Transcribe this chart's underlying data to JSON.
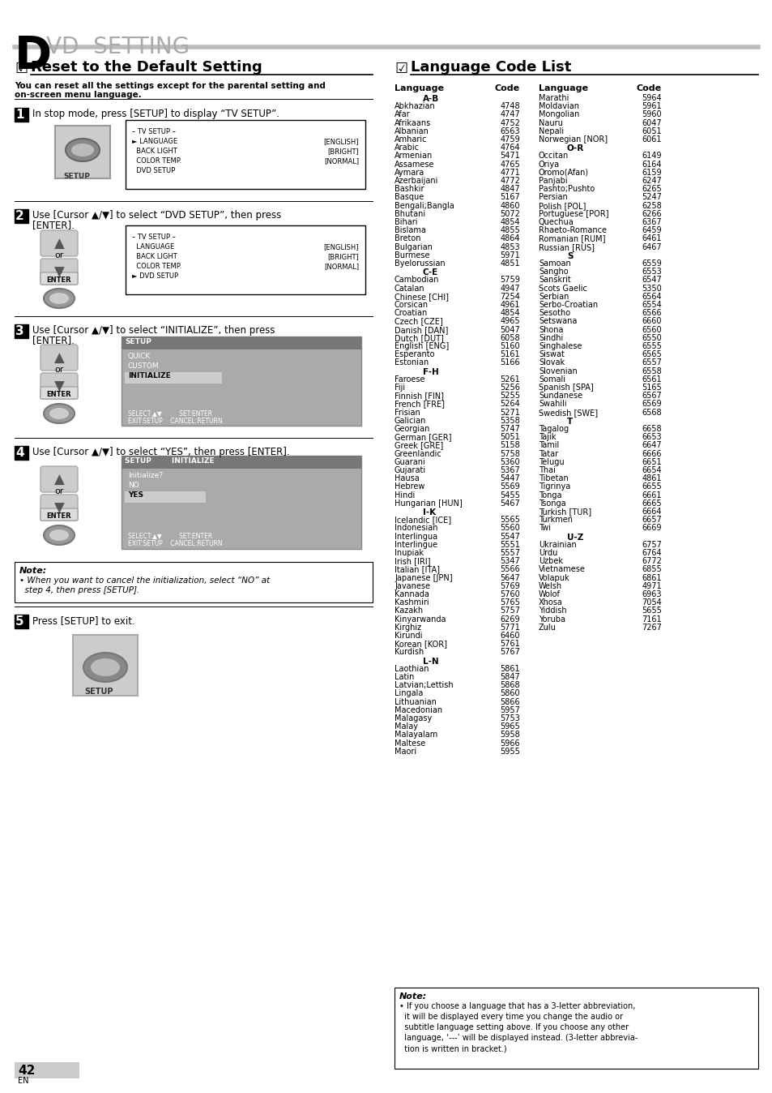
{
  "bg_color": "#ffffff",
  "lang_left": [
    [
      "A-B",
      null
    ],
    [
      "Abkhazian",
      "4748"
    ],
    [
      "Afar",
      "4747"
    ],
    [
      "Afrikaans",
      "4752"
    ],
    [
      "Albanian",
      "6563"
    ],
    [
      "Amharic",
      "4759"
    ],
    [
      "Arabic",
      "4764"
    ],
    [
      "Armenian",
      "5471"
    ],
    [
      "Assamese",
      "4765"
    ],
    [
      "Aymara",
      "4771"
    ],
    [
      "Azerbaijani",
      "4772"
    ],
    [
      "Bashkir",
      "4847"
    ],
    [
      "Basque",
      "5167"
    ],
    [
      "Bengali;Bangla",
      "4860"
    ],
    [
      "Bhutani",
      "5072"
    ],
    [
      "Bihari",
      "4854"
    ],
    [
      "Bislama",
      "4855"
    ],
    [
      "Breton",
      "4864"
    ],
    [
      "Bulgarian",
      "4853"
    ],
    [
      "Burmese",
      "5971"
    ],
    [
      "Byelorussian",
      "4851"
    ],
    [
      "C-E",
      null
    ],
    [
      "Cambodian",
      "5759"
    ],
    [
      "Catalan",
      "4947"
    ],
    [
      "Chinese [CHI]",
      "7254"
    ],
    [
      "Corsican",
      "4961"
    ],
    [
      "Croatian",
      "4854"
    ],
    [
      "Czech [CZE]",
      "4965"
    ],
    [
      "Danish [DAN]",
      "5047"
    ],
    [
      "Dutch [DUT]",
      "6058"
    ],
    [
      "English [ENG]",
      "5160"
    ],
    [
      "Esperanto",
      "5161"
    ],
    [
      "Estonian",
      "5166"
    ],
    [
      "F-H",
      null
    ],
    [
      "Faroese",
      "5261"
    ],
    [
      "Fiji",
      "5256"
    ],
    [
      "Finnish [FIN]",
      "5255"
    ],
    [
      "French [FRE]",
      "5264"
    ],
    [
      "Frisian",
      "5271"
    ],
    [
      "Galician",
      "5358"
    ],
    [
      "Georgian",
      "5747"
    ],
    [
      "German [GER]",
      "5051"
    ],
    [
      "Greek [GRE]",
      "5158"
    ],
    [
      "Greenlandic",
      "5758"
    ],
    [
      "Guarani",
      "5360"
    ],
    [
      "Gujarati",
      "5367"
    ],
    [
      "Hausa",
      "5447"
    ],
    [
      "Hebrew",
      "5569"
    ],
    [
      "Hindi",
      "5455"
    ],
    [
      "Hungarian [HUN]",
      "5467"
    ],
    [
      "I-K",
      null
    ],
    [
      "Icelandic [ICE]",
      "5565"
    ],
    [
      "Indonesian",
      "5560"
    ],
    [
      "Interlingua",
      "5547"
    ],
    [
      "Interlingue",
      "5551"
    ],
    [
      "Inupiak",
      "5557"
    ],
    [
      "Irish [IRI]",
      "5347"
    ],
    [
      "Italian [ITA]",
      "5566"
    ],
    [
      "Japanese [JPN]",
      "5647"
    ],
    [
      "Javanese",
      "5769"
    ],
    [
      "Kannada",
      "5760"
    ],
    [
      "Kashmiri",
      "5765"
    ],
    [
      "Kazakh",
      "5757"
    ],
    [
      "Kinyarwanda",
      "6269"
    ],
    [
      "Kirghiz",
      "5771"
    ],
    [
      "Kirundi",
      "6460"
    ],
    [
      "Korean [KOR]",
      "5761"
    ],
    [
      "Kurdish",
      "5767"
    ],
    [
      "L-N",
      null
    ],
    [
      "Laothian",
      "5861"
    ],
    [
      "Latin",
      "5847"
    ],
    [
      "Latvian;Lettish",
      "5868"
    ],
    [
      "Lingala",
      "5860"
    ],
    [
      "Lithuanian",
      "5866"
    ],
    [
      "Macedonian",
      "5957"
    ],
    [
      "Malagasy",
      "5753"
    ],
    [
      "Malay",
      "5965"
    ],
    [
      "Malayalam",
      "5958"
    ],
    [
      "Maltese",
      "5966"
    ],
    [
      "Maori",
      "5955"
    ]
  ],
  "lang_right": [
    [
      "Marathi",
      "5964"
    ],
    [
      "Moldavian",
      "5961"
    ],
    [
      "Mongolian",
      "5960"
    ],
    [
      "Nauru",
      "6047"
    ],
    [
      "Nepali",
      "6051"
    ],
    [
      "Norwegian [NOR]",
      "6061"
    ],
    [
      "O-R",
      null
    ],
    [
      "Occitan",
      "6149"
    ],
    [
      "Oriya",
      "6164"
    ],
    [
      "Oromo(Afan)",
      "6159"
    ],
    [
      "Panjabi",
      "6247"
    ],
    [
      "Pashto;Pushto",
      "6265"
    ],
    [
      "Persian",
      "5247"
    ],
    [
      "Polish [POL]",
      "6258"
    ],
    [
      "Portuguese [POR]",
      "6266"
    ],
    [
      "Quechua",
      "6367"
    ],
    [
      "Rhaeto-Romance",
      "6459"
    ],
    [
      "Romanian [RUM]",
      "6461"
    ],
    [
      "Russian [RUS]",
      "6467"
    ],
    [
      "S",
      null
    ],
    [
      "Samoan",
      "6559"
    ],
    [
      "Sangho",
      "6553"
    ],
    [
      "Sanskrit",
      "6547"
    ],
    [
      "Scots Gaelic",
      "5350"
    ],
    [
      "Serbian",
      "6564"
    ],
    [
      "Serbo-Croatian",
      "6554"
    ],
    [
      "Sesotho",
      "6566"
    ],
    [
      "Setswana",
      "6660"
    ],
    [
      "Shona",
      "6560"
    ],
    [
      "Sindhi",
      "6550"
    ],
    [
      "Singhalese",
      "6555"
    ],
    [
      "Siswat",
      "6565"
    ],
    [
      "Slovak",
      "6557"
    ],
    [
      "Slovenian",
      "6558"
    ],
    [
      "Somali",
      "6561"
    ],
    [
      "Spanish [SPA]",
      "5165"
    ],
    [
      "Sundanese",
      "6567"
    ],
    [
      "Swahili",
      "6569"
    ],
    [
      "Swedish [SWE]",
      "6568"
    ],
    [
      "T",
      null
    ],
    [
      "Tagalog",
      "6658"
    ],
    [
      "Tajik",
      "6653"
    ],
    [
      "Tamil",
      "6647"
    ],
    [
      "Tatar",
      "6666"
    ],
    [
      "Telugu",
      "6651"
    ],
    [
      "Thai",
      "6654"
    ],
    [
      "Tibetan",
      "4861"
    ],
    [
      "Tigrinya",
      "6655"
    ],
    [
      "Tonga",
      "6661"
    ],
    [
      "Tsonga",
      "6665"
    ],
    [
      "Turkish [TUR]",
      "6664"
    ],
    [
      "Turkmen",
      "6657"
    ],
    [
      "Twi",
      "6669"
    ],
    [
      "U-Z",
      null
    ],
    [
      "Ukrainian",
      "6757"
    ],
    [
      "Urdu",
      "6764"
    ],
    [
      "Uzbek",
      "6772"
    ],
    [
      "Vietnamese",
      "6855"
    ],
    [
      "Volapuk",
      "6861"
    ],
    [
      "Welsh",
      "4971"
    ],
    [
      "Wolof",
      "6963"
    ],
    [
      "Xhosa",
      "7054"
    ],
    [
      "Yiddish",
      "5655"
    ],
    [
      "Yoruba",
      "7161"
    ],
    [
      "Zulu",
      "7267"
    ]
  ],
  "tv_setup_lines1": [
    [
      "– TV SETUP –",
      "center"
    ],
    [
      "► LANGUAGE",
      "[ENGLISH]"
    ],
    [
      "  BACK LIGHT",
      "[BRIGHT]"
    ],
    [
      "  COLOR TEMP.",
      "[NORMAL]"
    ],
    [
      "  DVD SETUP",
      ""
    ]
  ],
  "tv_setup_lines2": [
    [
      "– TV SETUP –",
      "center"
    ],
    [
      "  LANGUAGE",
      "[ENGLISH]"
    ],
    [
      "  BACK LIGHT",
      "[BRIGHT]"
    ],
    [
      "  COLOR TEMP.",
      "[NORMAL]"
    ],
    [
      "► DVD SETUP",
      ""
    ]
  ],
  "note2_lines": [
    "• If you choose a language that has a 3-letter abbreviation,",
    "  it will be displayed every time you change the audio or",
    "  subtitle language setting above. If you choose any other",
    "  language, ‘---’ will be displayed instead. (3-letter abbrevia-",
    "  tion is written in bracket.)"
  ]
}
